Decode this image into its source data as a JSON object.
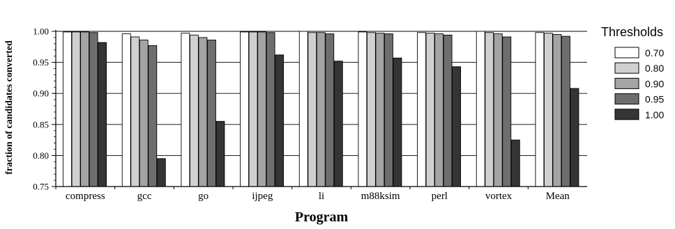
{
  "chart_data": {
    "type": "bar",
    "xlabel": "Program",
    "ylabel": "fraction of candidates converted",
    "ylim": [
      0.75,
      1.0
    ],
    "yticks": [
      "0.75",
      "0.80",
      "0.85",
      "0.90",
      "0.95",
      "1.00"
    ],
    "grid": true,
    "legend_title": "Thresholds",
    "legend_position": "right",
    "categories": [
      "compress",
      "gcc",
      "go",
      "ijpeg",
      "li",
      "m88ksim",
      "perl",
      "vortex",
      "Mean"
    ],
    "series": [
      {
        "name": "0.70",
        "color": "#ffffff",
        "values": [
          0.999,
          0.996,
          0.997,
          0.999,
          1.0,
          0.999,
          0.998,
          1.0,
          0.998
        ]
      },
      {
        "name": "0.80",
        "color": "#d0d0d0",
        "values": [
          0.999,
          0.991,
          0.994,
          0.999,
          0.998,
          0.998,
          0.997,
          0.998,
          0.997
        ]
      },
      {
        "name": "0.90",
        "color": "#a4a4a4",
        "values": [
          0.999,
          0.986,
          0.99,
          0.999,
          0.998,
          0.997,
          0.996,
          0.996,
          0.995
        ]
      },
      {
        "name": "0.95",
        "color": "#6e6e6e",
        "values": [
          0.998,
          0.977,
          0.986,
          0.998,
          0.996,
          0.996,
          0.994,
          0.991,
          0.992
        ]
      },
      {
        "name": "1.00",
        "color": "#353535",
        "values": [
          0.982,
          0.795,
          0.855,
          0.962,
          0.952,
          0.957,
          0.943,
          0.825,
          0.908
        ]
      }
    ]
  }
}
